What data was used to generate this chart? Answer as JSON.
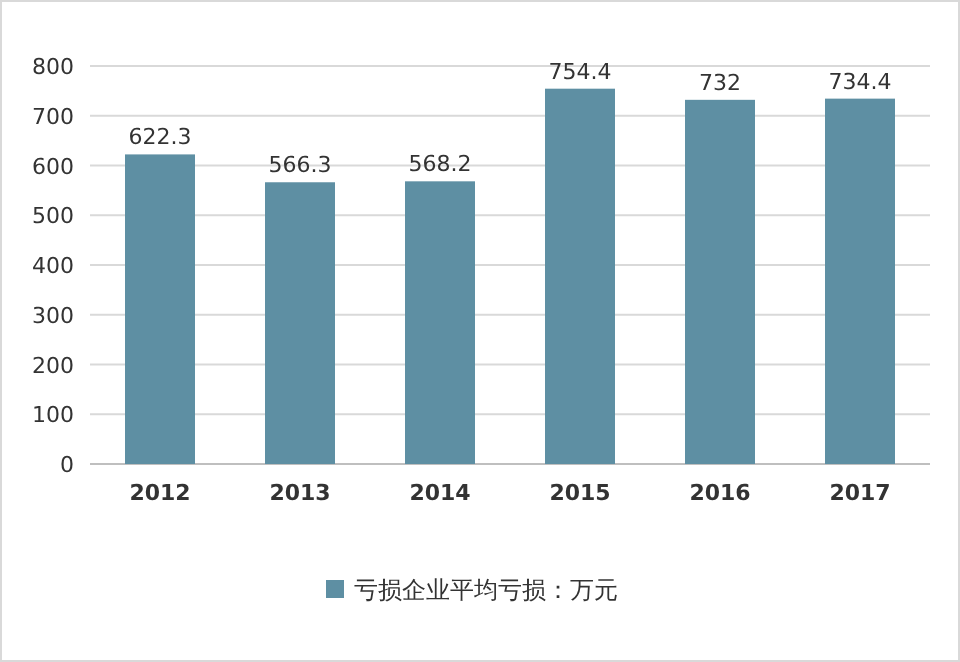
{
  "chart_data": {
    "type": "bar",
    "categories": [
      "2012",
      "2013",
      "2014",
      "2015",
      "2016",
      "2017"
    ],
    "series": [
      {
        "name": "亏损企业平均亏损：万元",
        "color": "#5e8fa3",
        "values": [
          622.3,
          566.3,
          568.2,
          754.4,
          732,
          734.4
        ]
      }
    ],
    "ylim": [
      0,
      800
    ],
    "yticks": [
      0,
      100,
      200,
      300,
      400,
      500,
      600,
      700,
      800
    ],
    "grid": "y",
    "legend": "bottom",
    "data_labels": true
  }
}
